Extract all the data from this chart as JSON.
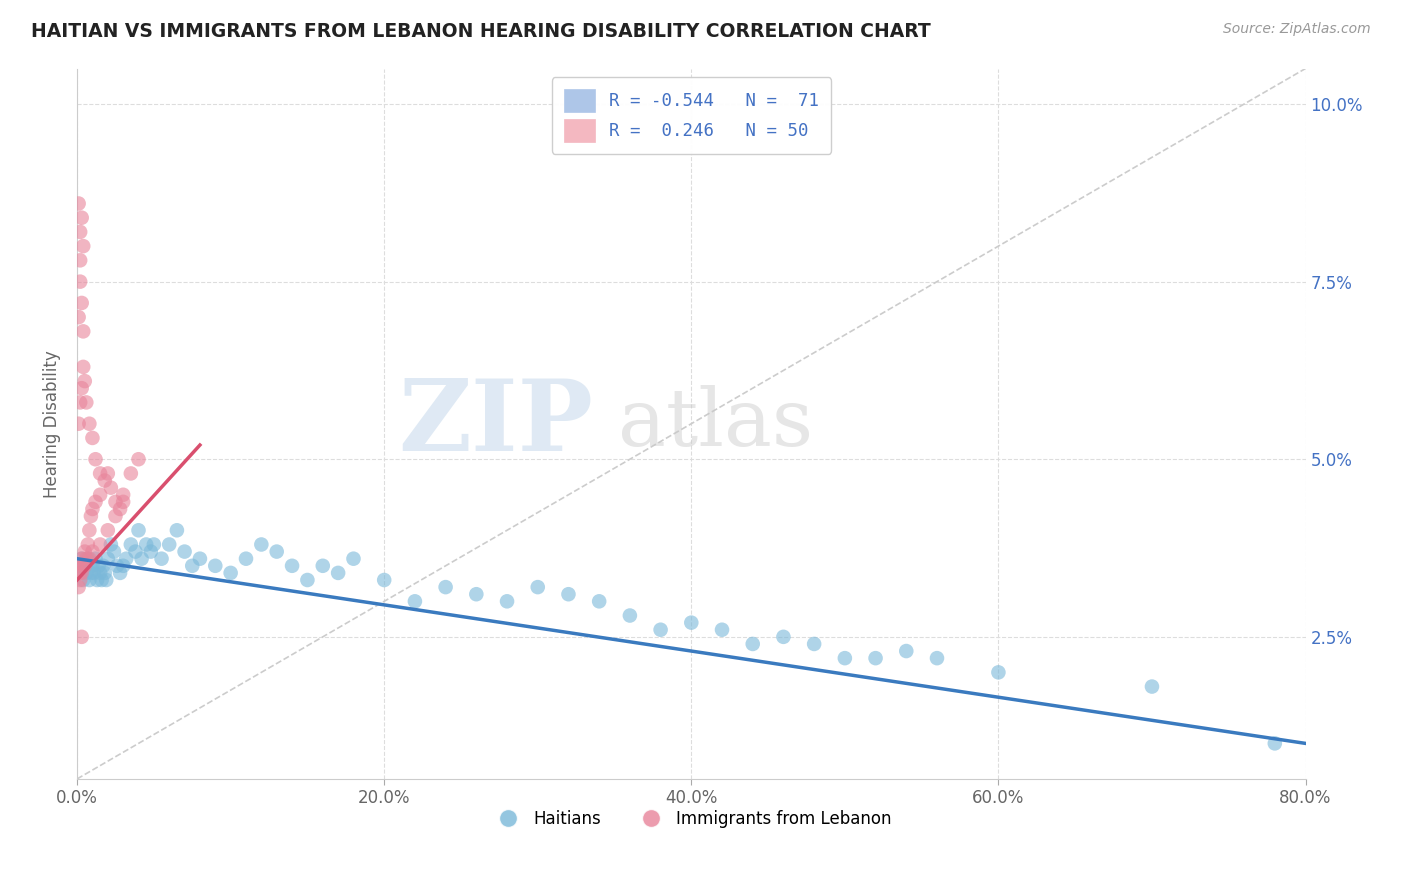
{
  "title": "HAITIAN VS IMMIGRANTS FROM LEBANON HEARING DISABILITY CORRELATION CHART",
  "source": "Source: ZipAtlas.com",
  "ylabel_label": "Hearing Disability",
  "xmin": 0.0,
  "xmax": 0.8,
  "ymin": 0.005,
  "ymax": 0.105,
  "xticks": [
    0.0,
    0.2,
    0.4,
    0.6,
    0.8
  ],
  "xlabels": [
    "0.0%",
    "20.0%",
    "40.0%",
    "60.0%",
    "80.0%"
  ],
  "yticks": [
    0.025,
    0.05,
    0.075,
    0.1
  ],
  "ylabels": [
    "2.5%",
    "5.0%",
    "7.5%",
    "10.0%"
  ],
  "legend_items": [
    {
      "label_r": "R = -0.544",
      "label_n": "N = 71",
      "color": "#aec6e8"
    },
    {
      "label_r": "R =  0.246",
      "label_n": "N = 50",
      "color": "#f4b8c1"
    }
  ],
  "legend_bottom": [
    "Haitians",
    "Immigrants from Lebanon"
  ],
  "blue_color": "#7ab8d9",
  "pink_color": "#e8849a",
  "blue_scatter_x": [
    0.001,
    0.002,
    0.003,
    0.004,
    0.005,
    0.006,
    0.007,
    0.008,
    0.009,
    0.01,
    0.011,
    0.012,
    0.013,
    0.014,
    0.015,
    0.016,
    0.017,
    0.018,
    0.019,
    0.02,
    0.022,
    0.024,
    0.026,
    0.028,
    0.03,
    0.032,
    0.035,
    0.038,
    0.04,
    0.042,
    0.045,
    0.048,
    0.05,
    0.055,
    0.06,
    0.065,
    0.07,
    0.075,
    0.08,
    0.09,
    0.1,
    0.11,
    0.12,
    0.13,
    0.14,
    0.15,
    0.16,
    0.17,
    0.18,
    0.2,
    0.22,
    0.24,
    0.26,
    0.28,
    0.3,
    0.32,
    0.34,
    0.36,
    0.38,
    0.4,
    0.42,
    0.44,
    0.46,
    0.48,
    0.5,
    0.52,
    0.54,
    0.56,
    0.6,
    0.7,
    0.78
  ],
  "blue_scatter_y": [
    0.035,
    0.034,
    0.036,
    0.033,
    0.035,
    0.034,
    0.036,
    0.033,
    0.034,
    0.035,
    0.034,
    0.036,
    0.033,
    0.035,
    0.034,
    0.033,
    0.035,
    0.034,
    0.033,
    0.036,
    0.038,
    0.037,
    0.035,
    0.034,
    0.035,
    0.036,
    0.038,
    0.037,
    0.04,
    0.036,
    0.038,
    0.037,
    0.038,
    0.036,
    0.038,
    0.04,
    0.037,
    0.035,
    0.036,
    0.035,
    0.034,
    0.036,
    0.038,
    0.037,
    0.035,
    0.033,
    0.035,
    0.034,
    0.036,
    0.033,
    0.03,
    0.032,
    0.031,
    0.03,
    0.032,
    0.031,
    0.03,
    0.028,
    0.026,
    0.027,
    0.026,
    0.024,
    0.025,
    0.024,
    0.022,
    0.022,
    0.023,
    0.022,
    0.02,
    0.018,
    0.01
  ],
  "pink_scatter_x": [
    0.001,
    0.002,
    0.003,
    0.004,
    0.005,
    0.006,
    0.007,
    0.008,
    0.009,
    0.01,
    0.012,
    0.015,
    0.018,
    0.02,
    0.022,
    0.025,
    0.028,
    0.03,
    0.035,
    0.04,
    0.001,
    0.002,
    0.003,
    0.004,
    0.005,
    0.006,
    0.008,
    0.01,
    0.012,
    0.015,
    0.001,
    0.002,
    0.003,
    0.005,
    0.008,
    0.01,
    0.015,
    0.02,
    0.025,
    0.03,
    0.001,
    0.002,
    0.003,
    0.004,
    0.001,
    0.002,
    0.003,
    0.004,
    0.002,
    0.003
  ],
  "pink_scatter_y": [
    0.035,
    0.034,
    0.036,
    0.035,
    0.037,
    0.036,
    0.038,
    0.04,
    0.042,
    0.043,
    0.044,
    0.045,
    0.047,
    0.048,
    0.046,
    0.044,
    0.043,
    0.045,
    0.048,
    0.05,
    0.055,
    0.058,
    0.06,
    0.063,
    0.061,
    0.058,
    0.055,
    0.053,
    0.05,
    0.048,
    0.032,
    0.033,
    0.034,
    0.035,
    0.036,
    0.037,
    0.038,
    0.04,
    0.042,
    0.044,
    0.07,
    0.075,
    0.072,
    0.068,
    0.086,
    0.082,
    0.084,
    0.08,
    0.078,
    0.025
  ],
  "blue_line_x": [
    0.0,
    0.8
  ],
  "blue_line_y": [
    0.036,
    0.01
  ],
  "pink_line_x": [
    0.0,
    0.08
  ],
  "pink_line_y": [
    0.033,
    0.052
  ],
  "grey_line_x": [
    0.0,
    0.8
  ],
  "grey_line_y": [
    0.005,
    0.105
  ]
}
